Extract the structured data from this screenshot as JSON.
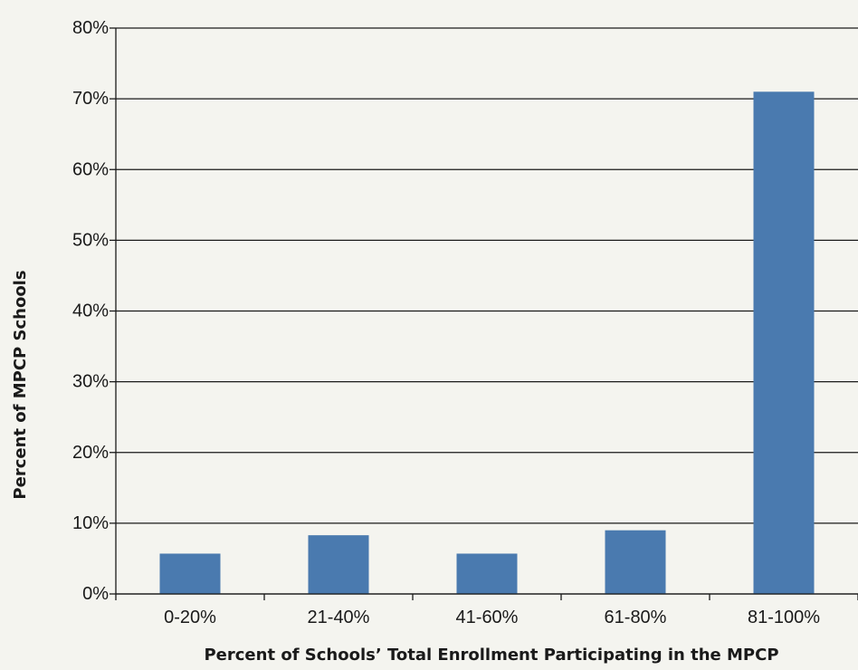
{
  "chart_data": {
    "type": "bar",
    "categories": [
      "0-20%",
      "21-40%",
      "41-60%",
      "61-80%",
      "81-100%"
    ],
    "values": [
      5.7,
      8.3,
      5.7,
      9.0,
      71.0
    ],
    "title": "",
    "xlabel": "Percent of Schools’ Total Enrollment Participating in the MPCP",
    "ylabel": "Percent of MPCP Schools",
    "ylim": [
      0,
      80
    ],
    "yticks": [
      "0%",
      "10%",
      "20%",
      "30%",
      "40%",
      "50%",
      "60%",
      "70%",
      "80%"
    ],
    "grid": true,
    "legend": "none",
    "bar_color": "#4a7aaf"
  }
}
